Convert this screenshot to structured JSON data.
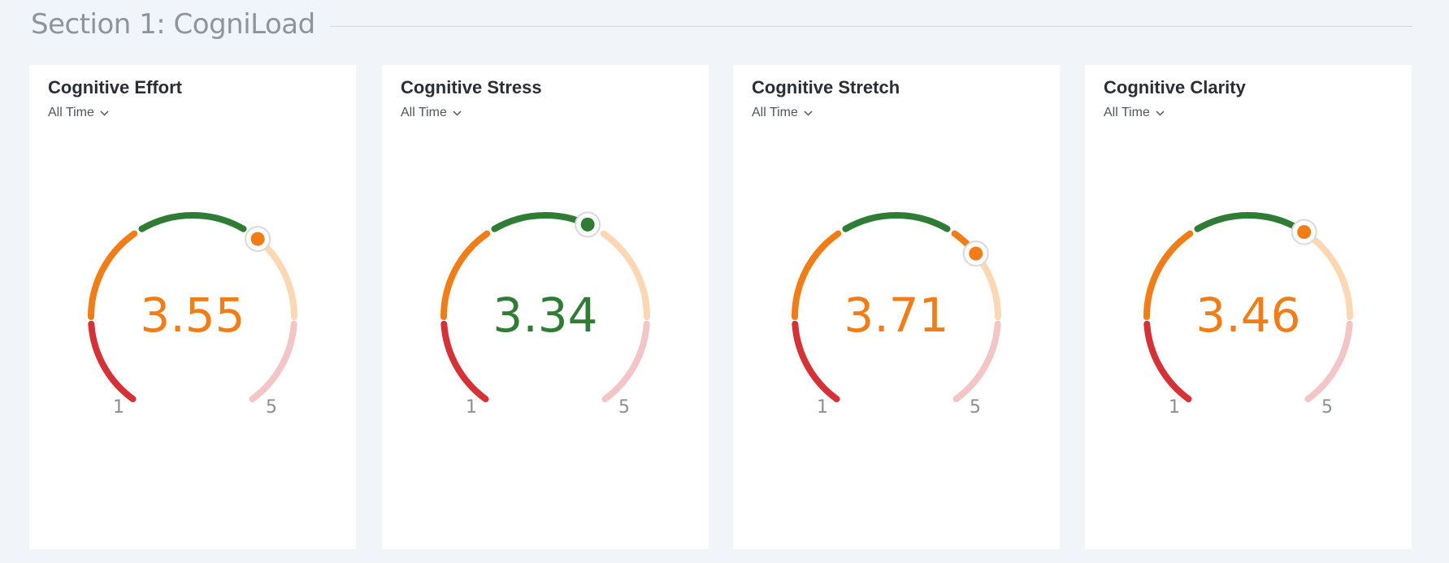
{
  "section": {
    "title": "Section 1: CogniLoad"
  },
  "scale": {
    "min_label": "1",
    "max_label": "5",
    "min": 1,
    "max": 5
  },
  "colors": {
    "red": "#d43237",
    "orange": "#f07d17",
    "green": "#2f7d35",
    "light_orange": "#fbd8b3",
    "light_red": "#f3c5c7",
    "scale_text": "#8a8f95",
    "handle_ring": "#d9d9d9"
  },
  "cards": [
    {
      "title": "Cognitive Effort",
      "filter": "All Time",
      "value": 3.55,
      "value_label": "3.55",
      "status": "orange",
      "icon": "chevron-down-icon"
    },
    {
      "title": "Cognitive Stress",
      "filter": "All Time",
      "value": 3.34,
      "value_label": "3.34",
      "status": "green",
      "icon": "chevron-down-icon"
    },
    {
      "title": "Cognitive Stretch",
      "filter": "All Time",
      "value": 3.71,
      "value_label": "3.71",
      "status": "orange",
      "icon": "chevron-down-icon"
    },
    {
      "title": "Cognitive Clarity",
      "filter": "All Time",
      "value": 3.46,
      "value_label": "3.46",
      "status": "orange",
      "icon": "chevron-down-icon"
    }
  ]
}
